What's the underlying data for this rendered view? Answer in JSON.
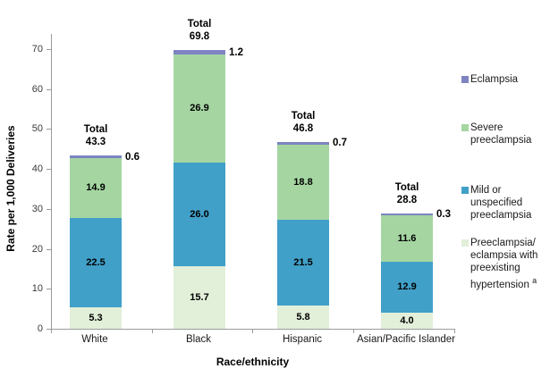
{
  "chart_data": {
    "type": "bar",
    "stacked": true,
    "xlabel": "Race/ethnicity",
    "ylabel": "Rate per 1,000 Deliveries",
    "ylim": [
      0,
      70
    ],
    "yticks": [
      0,
      10,
      20,
      30,
      40,
      50,
      60,
      70
    ],
    "grid": false,
    "legend_position": "right",
    "categories": [
      "White",
      "Black",
      "Hispanic",
      "Asian/Pacific Islander"
    ],
    "series": [
      {
        "name": "Preeclampsia/ eclampsia with preexisting hypertension",
        "superscript": "a",
        "color": "#e2efd9",
        "values": [
          5.3,
          15.7,
          5.8,
          4.0
        ],
        "labels": [
          "5.3",
          "15.7",
          "5.8",
          "4.0"
        ],
        "label_placement": "inside"
      },
      {
        "name": "Mild or unspecified preeclampsia",
        "color": "#41a0c8",
        "values": [
          22.5,
          26.0,
          21.5,
          12.9
        ],
        "labels": [
          "22.5",
          "26.0",
          "21.5",
          "12.9"
        ],
        "label_placement": "inside"
      },
      {
        "name": "Severe preeclampsia",
        "color": "#a5d6a2",
        "values": [
          14.9,
          26.9,
          18.8,
          11.6
        ],
        "labels": [
          "14.9",
          "26.9",
          "18.8",
          "11.6"
        ],
        "label_placement": "inside"
      },
      {
        "name": "Eclampsia",
        "color": "#7d84c1",
        "values": [
          0.6,
          1.2,
          0.7,
          0.3
        ],
        "labels": [
          "0.6",
          "1.2",
          "0.7",
          "0.3"
        ],
        "label_placement": "outside-right"
      }
    ],
    "totals": {
      "label": "Total",
      "values": [
        "43.3",
        "69.8",
        "46.8",
        "28.8"
      ]
    },
    "legend": [
      {
        "label": "Eclampsia",
        "color": "#7d84c1"
      },
      {
        "label": "Severe preeclampsia",
        "color": "#a5d6a2"
      },
      {
        "label": "Mild or unspecified preeclampsia",
        "color": "#41a0c8"
      },
      {
        "label": "Preeclampsia/ eclampsia with preexisting hypertension",
        "superscript": "a",
        "color": "#e2efd9"
      }
    ]
  }
}
